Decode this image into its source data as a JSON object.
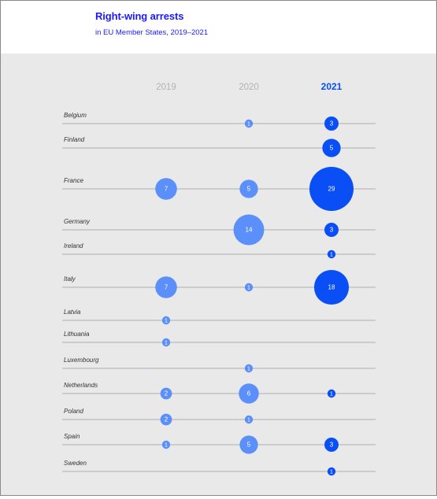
{
  "header": {
    "title": "Right-wing arrests",
    "subtitle": "in EU Member States, 2019–2021"
  },
  "colors": {
    "bubble_light": "#5b8ff9",
    "bubble_dark": "#0a4ff5",
    "year_muted": "#b3b3b3",
    "year_active": "#0a4ff5",
    "row_line": "#9a9a9a",
    "panel_bg": "#e9e9e9"
  },
  "chart_data": {
    "type": "scatter",
    "title": "Right-wing arrests",
    "subtitle": "in EU Member States, 2019–2021",
    "columns": [
      "2019",
      "2020",
      "2021"
    ],
    "highlight_column": "2021",
    "rows": [
      "Belgium",
      "Finland",
      "France",
      "Germany",
      "Ireland",
      "Italy",
      "Latvia",
      "Lithuania",
      "Luxembourg",
      "Netherlands",
      "Poland",
      "Spain",
      "Sweden"
    ],
    "values": [
      [
        null,
        1,
        3
      ],
      [
        null,
        null,
        5
      ],
      [
        7,
        5,
        29
      ],
      [
        null,
        14,
        3
      ],
      [
        null,
        null,
        1
      ],
      [
        7,
        1,
        18
      ],
      [
        1,
        null,
        null
      ],
      [
        1,
        null,
        null
      ],
      [
        null,
        1,
        null
      ],
      [
        2,
        6,
        1
      ],
      [
        2,
        1,
        null
      ],
      [
        1,
        5,
        3
      ],
      [
        null,
        null,
        1
      ]
    ],
    "encoding": "bubble area proportional to number of arrests"
  }
}
